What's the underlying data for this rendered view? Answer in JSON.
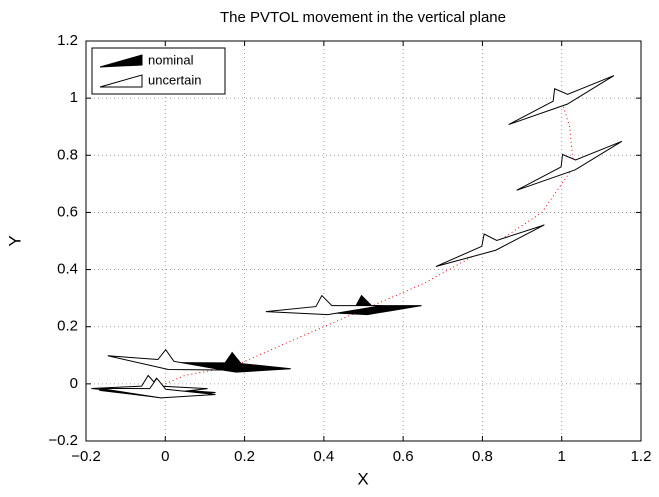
{
  "chart_data": {
    "type": "pvtol",
    "title": "The PVTOL movement in the vertical plane",
    "x_label": "X",
    "y_label": "Y",
    "xlim": [
      -0.2,
      1.2
    ],
    "ylim": [
      -0.2,
      1.2
    ],
    "xticks": [
      {
        "value": -0.2,
        "label": "−0.2"
      },
      0,
      0.2,
      0.4,
      0.6,
      0.8,
      1,
      1.2
    ],
    "yticks": [
      {
        "value": -0.2,
        "label": "−0.2"
      },
      0,
      0.2,
      0.4,
      0.6,
      0.8,
      1,
      1.2
    ],
    "grid": true,
    "legend": "upper left",
    "trajectory": {
      "color": "#ff0000",
      "x": [
        0.0,
        0.05,
        0.17,
        0.35,
        0.5,
        0.65,
        0.82,
        0.95,
        1.03,
        1.02,
        1.0
      ],
      "y": [
        0.0,
        0.03,
        0.06,
        0.17,
        0.26,
        0.35,
        0.48,
        0.6,
        0.76,
        0.9,
        0.99
      ]
    },
    "series": [
      {
        "name": "nominal",
        "color": "#000000",
        "x": [
          -0.02,
          0.17,
          0.5
        ],
        "y": [
          -0.03,
          0.06,
          0.26
        ],
        "angle": [
          -4,
          -6,
          0
        ]
      },
      {
        "name": "uncertain",
        "color": "#ffffff",
        "x": [
          -0.04,
          -0.02,
          0.0,
          0.4,
          0.82,
          1.02,
          1.0
        ],
        "y": [
          -0.02,
          -0.03,
          0.07,
          0.26,
          0.48,
          0.76,
          0.99
        ],
        "angle": [
          -3,
          -6,
          -10,
          0,
          18,
          22,
          22
        ]
      }
    ]
  }
}
